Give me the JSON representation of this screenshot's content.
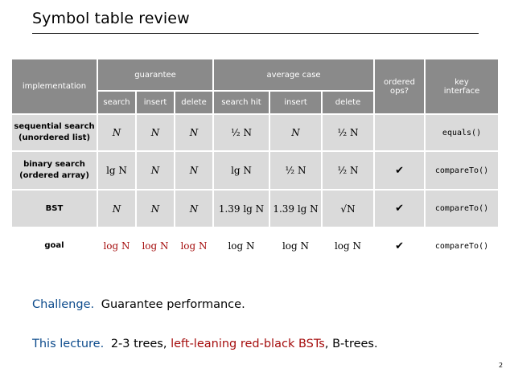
{
  "title": "Symbol table review",
  "table": {
    "header": {
      "implementation": "implementation",
      "guarantee": "guarantee",
      "average_case": "average case",
      "ordered_ops": "ordered ops?",
      "key_interface": "key interface",
      "sub": [
        "search",
        "insert",
        "delete",
        "search hit",
        "insert",
        "delete"
      ]
    },
    "rows": [
      {
        "label_line1": "sequential search",
        "label_line2": "(unordered list)",
        "cells": [
          "N",
          "N",
          "N",
          "½ N",
          "N",
          "½ N"
        ],
        "ordered": "",
        "key": "equals()"
      },
      {
        "label_line1": "binary search",
        "label_line2": "(ordered array)",
        "cells": [
          "lg N",
          "N",
          "N",
          "lg N",
          "½ N",
          "½ N"
        ],
        "ordered": "✔",
        "key": "compareTo()"
      },
      {
        "label_line1": "BST",
        "label_line2": "",
        "cells": [
          "N",
          "N",
          "N",
          "1.39 lg N",
          "1.39 lg N",
          "√N"
        ],
        "ordered": "✔",
        "key": "compareTo()"
      },
      {
        "label_line1": "goal",
        "label_line2": "",
        "cells": [
          "log N",
          "log N",
          "log N",
          "log N",
          "log N",
          "log N"
        ],
        "ordered": "✔",
        "key": "compareTo()"
      }
    ]
  },
  "challenge": {
    "label": "Challenge.",
    "text": "Guarantee performance."
  },
  "lecture": {
    "label": "This lecture.",
    "text_a": "2-3 trees,",
    "text_b": "left-leaning red-black BSTs",
    "text_c": ", B-trees."
  },
  "page_number": "2",
  "colors": {
    "header_bg": "#8a8a8a",
    "cell_bg": "#dadada",
    "accent_red": "#a50d0d",
    "accent_blue": "#0d4b8c"
  }
}
